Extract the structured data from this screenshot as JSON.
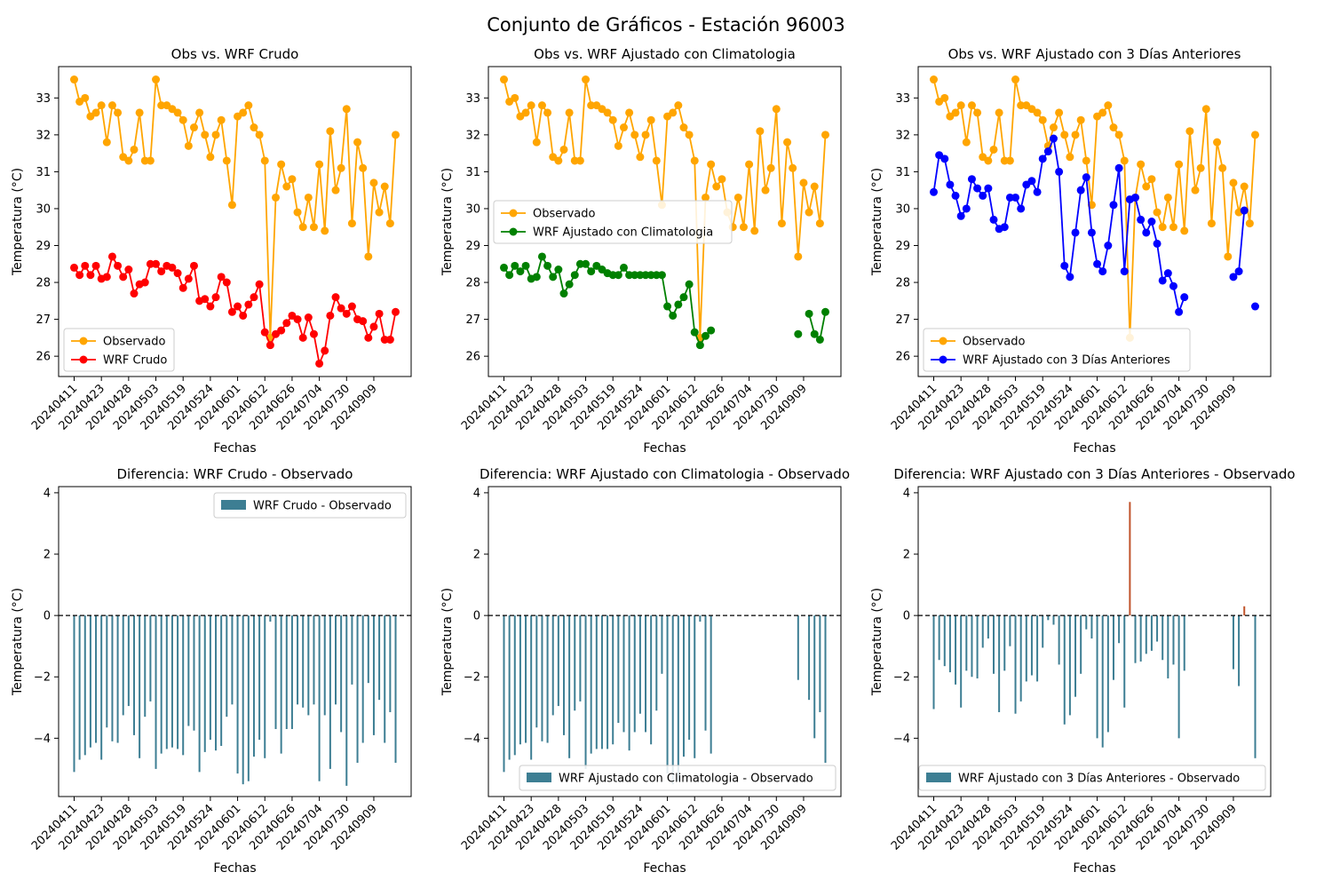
{
  "figure": {
    "title": "Conjunto de Gráficos - Estación 96003"
  },
  "colors": {
    "observed": "#ffa500",
    "wrf_raw": "#ff0000",
    "wrf_clim": "#008000",
    "wrf_3d": "#0000ff",
    "bar_negative": "#3d7e93",
    "bar_positive": "#c0532a",
    "zero_line": "#000000"
  },
  "x_tick_labels": [
    "20240411",
    "20240423",
    "20240428",
    "20240503",
    "20240519",
    "20240524",
    "20240601",
    "20240612",
    "20240626",
    "20240704",
    "20240730",
    "20240909"
  ],
  "chart_data": [
    {
      "type": "line",
      "title": "Obs vs. WRF Crudo",
      "xlabel": "Fechas",
      "ylabel": "Temperatura (°C)",
      "ylim": [
        25.45,
        33.85
      ],
      "yticks": [
        26,
        27,
        28,
        29,
        30,
        31,
        32,
        33
      ],
      "legend": "lower-left",
      "series": [
        {
          "name": "Observado",
          "color_key": "observed",
          "values": [
            33.5,
            32.9,
            33.0,
            32.5,
            32.6,
            32.8,
            31.8,
            32.8,
            32.6,
            31.4,
            31.3,
            31.6,
            32.6,
            31.3,
            31.3,
            33.5,
            32.8,
            32.8,
            32.7,
            32.6,
            32.4,
            31.7,
            32.2,
            32.6,
            32.0,
            31.4,
            32.0,
            32.4,
            31.3,
            30.1,
            32.5,
            32.6,
            32.8,
            32.2,
            32.0,
            31.3,
            26.5,
            30.3,
            31.2,
            30.6,
            30.8,
            29.9,
            29.5,
            30.3,
            29.5,
            31.2,
            29.4,
            32.1,
            30.5,
            31.1,
            32.7,
            29.6,
            31.8,
            31.1,
            28.7,
            30.7,
            29.9,
            30.6,
            29.6,
            32.0
          ]
        },
        {
          "name": "WRF Crudo",
          "color_key": "wrf_raw",
          "values": [
            28.4,
            28.2,
            28.45,
            28.2,
            28.45,
            28.1,
            28.15,
            28.7,
            28.45,
            28.15,
            28.35,
            27.7,
            27.95,
            28.0,
            28.5,
            28.5,
            28.3,
            28.45,
            28.4,
            28.25,
            27.85,
            28.1,
            28.45,
            27.5,
            27.55,
            27.35,
            27.6,
            28.15,
            28.0,
            27.2,
            27.35,
            27.1,
            27.4,
            27.6,
            27.95,
            26.65,
            26.3,
            26.6,
            26.7,
            26.9,
            27.1,
            27.0,
            26.5,
            27.05,
            26.6,
            25.8,
            26.15,
            27.1,
            27.6,
            27.3,
            27.15,
            27.35,
            27.0,
            26.95,
            26.5,
            26.8,
            27.15,
            26.45,
            26.45,
            27.2
          ]
        }
      ]
    },
    {
      "type": "line",
      "title": "Obs vs. WRF Ajustado con Climatologia",
      "xlabel": "Fechas",
      "ylabel": "Temperatura (°C)",
      "ylim": [
        25.45,
        33.85
      ],
      "yticks": [
        26,
        27,
        28,
        29,
        30,
        31,
        32,
        33
      ],
      "legend": "center-left",
      "series": [
        {
          "name": "Observado",
          "color_key": "observed",
          "values": [
            33.5,
            32.9,
            33.0,
            32.5,
            32.6,
            32.8,
            31.8,
            32.8,
            32.6,
            31.4,
            31.3,
            31.6,
            32.6,
            31.3,
            31.3,
            33.5,
            32.8,
            32.8,
            32.7,
            32.6,
            32.4,
            31.7,
            32.2,
            32.6,
            32.0,
            31.4,
            32.0,
            32.4,
            31.3,
            30.1,
            32.5,
            32.6,
            32.8,
            32.2,
            32.0,
            31.3,
            26.5,
            30.3,
            31.2,
            30.6,
            30.8,
            29.9,
            29.5,
            30.3,
            29.5,
            31.2,
            29.4,
            32.1,
            30.5,
            31.1,
            32.7,
            29.6,
            31.8,
            31.1,
            28.7,
            30.7,
            29.9,
            30.6,
            29.6,
            32.0
          ]
        },
        {
          "name": "WRF Ajustado con Climatologia",
          "color_key": "wrf_clim",
          "values": [
            28.4,
            28.2,
            28.45,
            28.3,
            28.45,
            28.1,
            28.15,
            28.7,
            28.45,
            28.15,
            28.35,
            27.7,
            27.95,
            28.2,
            28.5,
            28.5,
            28.3,
            28.45,
            28.35,
            28.25,
            28.2,
            28.2,
            28.4,
            28.2,
            28.2,
            28.2,
            28.2,
            28.2,
            28.2,
            28.2,
            27.35,
            27.1,
            27.4,
            27.6,
            27.95,
            26.65,
            26.3,
            26.55,
            26.7,
            null,
            null,
            null,
            null,
            null,
            null,
            null,
            null,
            null,
            null,
            null,
            null,
            null,
            null,
            null,
            26.6,
            null,
            27.15,
            26.6,
            26.45,
            27.2
          ]
        }
      ]
    },
    {
      "type": "line",
      "title": "Obs vs. WRF Ajustado con 3 Días Anteriores",
      "xlabel": "Fechas",
      "ylabel": "Temperatura (°C)",
      "ylim": [
        25.45,
        33.85
      ],
      "yticks": [
        26,
        27,
        28,
        29,
        30,
        31,
        32,
        33
      ],
      "legend": "lower-left",
      "series": [
        {
          "name": "Observado",
          "color_key": "observed",
          "values": [
            33.5,
            32.9,
            33.0,
            32.5,
            32.6,
            32.8,
            31.8,
            32.8,
            32.6,
            31.4,
            31.3,
            31.6,
            32.6,
            31.3,
            31.3,
            33.5,
            32.8,
            32.8,
            32.7,
            32.6,
            32.4,
            31.7,
            32.2,
            32.6,
            32.0,
            31.4,
            32.0,
            32.4,
            31.3,
            30.1,
            32.5,
            32.6,
            32.8,
            32.2,
            32.0,
            31.3,
            26.5,
            30.3,
            31.2,
            30.6,
            30.8,
            29.9,
            29.5,
            30.3,
            29.5,
            31.2,
            29.4,
            32.1,
            30.5,
            31.1,
            32.7,
            29.6,
            31.8,
            31.1,
            28.7,
            30.7,
            29.9,
            30.6,
            29.6,
            32.0
          ]
        },
        {
          "name": "WRF Ajustado con 3 Días Anteriores",
          "color_key": "wrf_3d",
          "values": [
            30.45,
            31.45,
            31.35,
            30.65,
            30.35,
            29.8,
            30.0,
            30.8,
            30.55,
            30.35,
            30.55,
            29.7,
            29.45,
            29.5,
            30.3,
            30.3,
            30.0,
            30.65,
            30.75,
            30.45,
            31.35,
            31.55,
            31.9,
            31.0,
            28.45,
            28.15,
            29.35,
            30.5,
            30.85,
            29.35,
            28.5,
            28.3,
            29.0,
            30.1,
            31.1,
            28.3,
            30.25,
            30.3,
            29.7,
            29.35,
            29.65,
            29.05,
            28.05,
            28.25,
            27.9,
            27.2,
            27.6,
            null,
            null,
            null,
            null,
            null,
            null,
            null,
            null,
            28.15,
            28.3,
            29.95,
            null,
            27.35
          ]
        }
      ]
    },
    {
      "type": "bar",
      "title": "Diferencia: WRF Crudo - Observado",
      "xlabel": "Fechas",
      "ylabel": "Temperatura (°C)",
      "ylim": [
        -5.9,
        4.2
      ],
      "yticks": [
        -4,
        -2,
        0,
        2,
        4
      ],
      "legend": "top-right",
      "series": [
        {
          "name": "WRF Crudo - Observado",
          "values": [
            -5.1,
            -4.7,
            -4.55,
            -4.3,
            -4.15,
            -4.7,
            -3.65,
            -4.1,
            -4.15,
            -3.25,
            -2.95,
            -3.9,
            -4.65,
            -3.3,
            -2.8,
            -5.0,
            -4.5,
            -4.35,
            -4.3,
            -4.35,
            -4.55,
            -3.6,
            -3.75,
            -5.1,
            -4.45,
            -4.05,
            -4.4,
            -4.25,
            -3.3,
            -2.9,
            -5.15,
            -5.5,
            -5.4,
            -4.6,
            -4.05,
            -4.65,
            -0.2,
            -3.7,
            -4.5,
            -3.7,
            -3.7,
            -2.9,
            -3.0,
            -3.25,
            -2.9,
            -5.4,
            -3.25,
            -5.0,
            -2.9,
            -3.8,
            -5.55,
            -2.25,
            -4.8,
            -4.15,
            -2.2,
            -3.9,
            -2.75,
            -4.15,
            -3.15,
            -4.8
          ]
        }
      ]
    },
    {
      "type": "bar",
      "title": "Diferencia: WRF Ajustado con Climatologia - Observado",
      "xlabel": "Fechas",
      "ylabel": "Temperatura (°C)",
      "ylim": [
        -5.9,
        4.2
      ],
      "yticks": [
        -4,
        -2,
        0,
        2,
        4
      ],
      "legend": "bottom-right",
      "series": [
        {
          "name": "WRF Ajustado con Climatologia - Observado",
          "values": [
            -5.1,
            -4.7,
            -4.55,
            -4.2,
            -4.15,
            -4.7,
            -3.65,
            -4.1,
            -4.15,
            -3.25,
            -2.95,
            -3.9,
            -4.65,
            -3.1,
            -2.8,
            -5.0,
            -4.5,
            -4.35,
            -4.35,
            -4.35,
            -4.2,
            -3.5,
            -3.8,
            -4.4,
            -3.8,
            -3.2,
            -3.8,
            -4.2,
            -3.1,
            -1.9,
            -5.15,
            -5.5,
            -5.4,
            -4.6,
            -4.05,
            -4.65,
            -0.2,
            -3.75,
            -4.5,
            null,
            null,
            null,
            null,
            null,
            null,
            null,
            null,
            null,
            null,
            null,
            null,
            null,
            null,
            null,
            -2.1,
            null,
            -2.75,
            -4.0,
            -3.15,
            -4.8
          ]
        }
      ]
    },
    {
      "type": "bar",
      "title": "Diferencia: WRF Ajustado con 3 Días Anteriores - Observado",
      "xlabel": "Fechas",
      "ylabel": "Temperatura (°C)",
      "ylim": [
        -5.9,
        4.2
      ],
      "yticks": [
        -4,
        -2,
        0,
        2,
        4
      ],
      "legend": "bottom-right",
      "series": [
        {
          "name": "WRF Ajustado con 3 Días Anteriores - Observado",
          "values": [
            -3.05,
            -1.45,
            -1.65,
            -1.85,
            -2.25,
            -3.0,
            -1.8,
            -2.0,
            -2.05,
            -1.05,
            -0.75,
            -1.9,
            -3.15,
            -1.8,
            -1.0,
            -3.2,
            -2.8,
            -2.15,
            -1.95,
            -2.15,
            -1.05,
            -0.15,
            -0.3,
            -1.6,
            -3.55,
            -3.25,
            -2.65,
            -1.9,
            -0.45,
            -0.75,
            -4.0,
            -4.3,
            -3.8,
            -2.1,
            -0.9,
            -3.0,
            3.7,
            -1.55,
            -1.5,
            -1.25,
            -1.15,
            -0.85,
            -1.45,
            -2.05,
            -1.6,
            -4.0,
            -1.8,
            null,
            null,
            null,
            null,
            null,
            null,
            null,
            null,
            -1.75,
            -2.3,
            0.3,
            null,
            -4.65
          ]
        }
      ]
    }
  ]
}
